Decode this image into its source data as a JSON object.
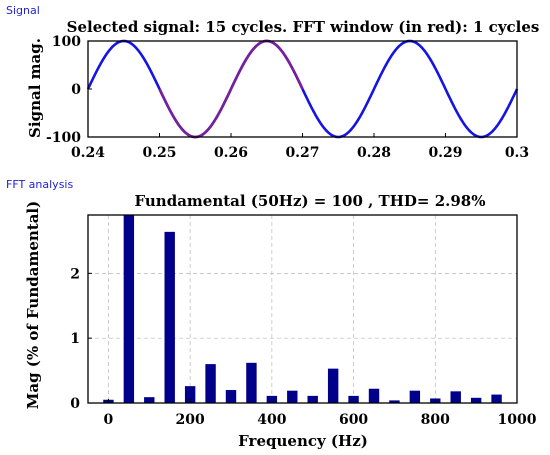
{
  "panels": {
    "signal_label": "Signal",
    "fft_label": "FFT analysis"
  },
  "colors": {
    "signal": "#1414e6",
    "fft_window": "#7a1f9a",
    "bars": "#00008b",
    "panel_label": "#1f1fd6"
  },
  "chart_data": [
    {
      "type": "line",
      "title": "Selected signal: 15 cycles. FFT window (in red): 1 cycles",
      "xlabel": "",
      "ylabel": "Signal mag.",
      "xlim": [
        0.24,
        0.3
      ],
      "ylim": [
        -100,
        100
      ],
      "xticks": [
        "0.24",
        "0.25",
        "0.26",
        "0.27",
        "0.28",
        "0.29",
        "0.3"
      ],
      "yticks": [
        "-100",
        "0",
        "100"
      ],
      "grid": false,
      "frequency_hz": 50,
      "amplitude": 100,
      "phase_deg": 0,
      "fft_window": [
        0.25,
        0.27
      ],
      "series": [
        {
          "role": "signal",
          "x_start": 0.24,
          "x_end": 0.3
        },
        {
          "role": "fft_window",
          "x_start": 0.25,
          "x_end": 0.27
        }
      ]
    },
    {
      "type": "bar",
      "title": "Fundamental (50Hz) = 100 , THD= 2.98%",
      "xlabel": "Frequency (Hz)",
      "ylabel": "Mag (% of Fundamental)",
      "xlim": [
        -50,
        1000
      ],
      "ylim": [
        0,
        2.9
      ],
      "xticks": [
        "0",
        "200",
        "400",
        "600",
        "800",
        "1000"
      ],
      "yticks": [
        "0",
        "1",
        "2"
      ],
      "grid": true,
      "x": [
        0,
        50,
        100,
        150,
        200,
        250,
        300,
        350,
        400,
        450,
        500,
        550,
        600,
        650,
        700,
        750,
        800,
        850,
        900,
        950
      ],
      "values": [
        0.05,
        2.9,
        0.09,
        2.64,
        0.26,
        0.6,
        0.2,
        0.62,
        0.11,
        0.19,
        0.11,
        0.53,
        0.11,
        0.22,
        0.04,
        0.19,
        0.07,
        0.18,
        0.08,
        0.13
      ]
    }
  ]
}
